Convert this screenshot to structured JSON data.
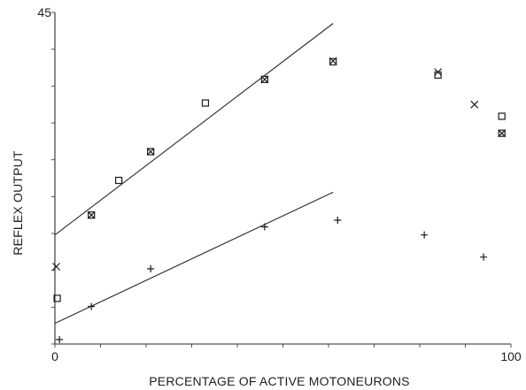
{
  "chart_data": {
    "type": "scatter",
    "title": "",
    "xlabel": "PERCENTAGE OF ACTIVE MOTONEURONS",
    "ylabel": "REFLEX OUTPUT",
    "xlim": [
      0,
      100
    ],
    "ylim": [
      0,
      45
    ],
    "x_ticks": [
      0,
      100
    ],
    "x_tick_labels": [
      "0",
      "100"
    ],
    "y_ticks": [
      45
    ],
    "y_tick_labels": [
      "45"
    ],
    "grid": false,
    "series": [
      {
        "marker": "square",
        "points": [
          {
            "x": 0.5,
            "y": 6.2
          },
          {
            "x": 8,
            "y": 17.5
          },
          {
            "x": 14,
            "y": 22.2
          },
          {
            "x": 21,
            "y": 26.1
          },
          {
            "x": 33,
            "y": 32.7
          },
          {
            "x": 46,
            "y": 35.9
          },
          {
            "x": 61,
            "y": 38.3
          },
          {
            "x": 84,
            "y": 36.5
          },
          {
            "x": 98,
            "y": 30.9
          },
          {
            "x": 98,
            "y": 28.6
          }
        ]
      },
      {
        "marker": "x",
        "points": [
          {
            "x": 0.3,
            "y": 10.5
          },
          {
            "x": 8,
            "y": 17.5
          },
          {
            "x": 21,
            "y": 26.1
          },
          {
            "x": 46,
            "y": 35.9
          },
          {
            "x": 61,
            "y": 38.4
          },
          {
            "x": 84,
            "y": 36.9
          },
          {
            "x": 92,
            "y": 32.5
          },
          {
            "x": 98,
            "y": 28.6
          }
        ]
      },
      {
        "marker": "plus",
        "points": [
          {
            "x": 1,
            "y": 0.6
          },
          {
            "x": 8,
            "y": 5.1
          },
          {
            "x": 21,
            "y": 10.2
          },
          {
            "x": 46,
            "y": 15.9
          },
          {
            "x": 62,
            "y": 16.8
          },
          {
            "x": 81,
            "y": 14.8
          },
          {
            "x": 94,
            "y": 11.8
          }
        ]
      }
    ],
    "fit_lines": [
      {
        "x": [
          0,
          61
        ],
        "y": [
          14.8,
          43.5
        ]
      },
      {
        "x": [
          0,
          61
        ],
        "y": [
          2.8,
          20.6
        ]
      }
    ]
  }
}
